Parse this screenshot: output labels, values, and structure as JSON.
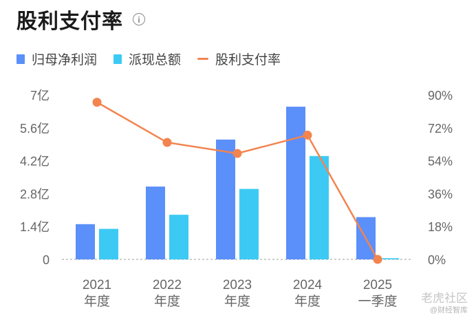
{
  "title": "股利支付率",
  "info_icon": "info-icon",
  "colors": {
    "net_profit": "#5b8ff9",
    "dividend": "#3ccaf5",
    "payout": "#f2844f",
    "axis_text": "#666666",
    "grid": "#bdbdbd"
  },
  "watermark": {
    "line1": "老虎社区",
    "line2": "@财经智库"
  },
  "chart_data": {
    "type": "bar",
    "categories": [
      [
        "2021",
        "年度"
      ],
      [
        "2022",
        "年度"
      ],
      [
        "2023",
        "年度"
      ],
      [
        "2024",
        "年度"
      ],
      [
        "2025",
        "一季度"
      ]
    ],
    "series": [
      {
        "name": "归母净利润",
        "type": "bar",
        "axis": "left",
        "values": [
          1.5,
          3.1,
          5.1,
          6.5,
          1.8
        ]
      },
      {
        "name": "派现总额",
        "type": "bar",
        "axis": "left",
        "values": [
          1.3,
          1.9,
          3.0,
          4.4,
          0.05
        ]
      },
      {
        "name": "股利支付率",
        "type": "line",
        "axis": "right",
        "values": [
          86,
          64,
          58,
          68,
          0
        ]
      }
    ],
    "y_left": {
      "ylim": [
        0,
        7
      ],
      "ticks": [
        "0",
        "1.4亿",
        "2.8亿",
        "4.2亿",
        "5.6亿",
        "7亿"
      ],
      "unit": "亿"
    },
    "y_right": {
      "ylim": [
        0,
        90
      ],
      "ticks": [
        "0%",
        "18%",
        "36%",
        "54%",
        "72%",
        "90%"
      ],
      "unit": "%"
    },
    "grid": false,
    "legend": "top-left"
  }
}
